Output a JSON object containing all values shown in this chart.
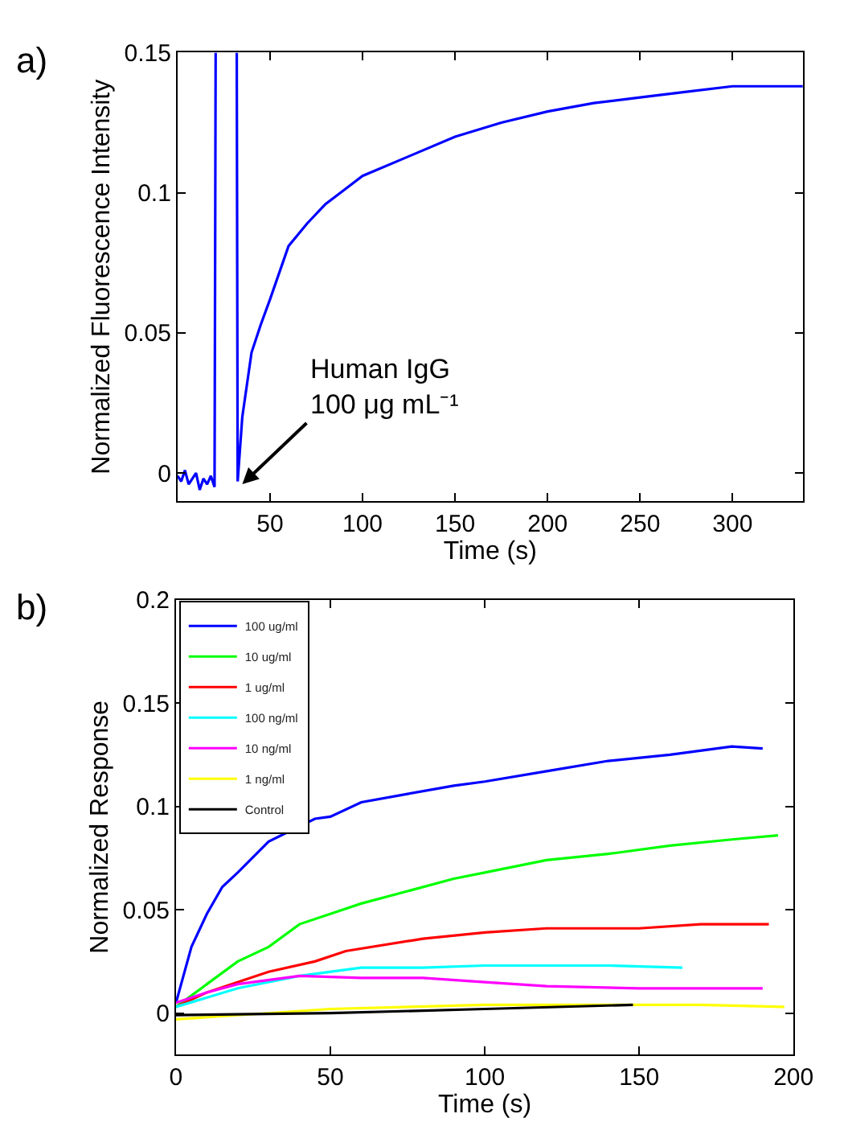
{
  "chart_data": [
    {
      "type": "line",
      "annotations": [
        "a)",
        {
          "text": "Human IgG\n100 μg mL⁻¹",
          "x": 35,
          "y": -0.004
        }
      ],
      "xlabel": "Time (s)",
      "ylabel": "Normalized Fluorescence Intensity",
      "xlim": [
        0,
        338
      ],
      "ylim": [
        -0.01,
        0.15
      ],
      "xticks": [
        50,
        100,
        150,
        200,
        250,
        300
      ],
      "yticks": [
        0,
        0.05,
        0.1,
        0.15
      ],
      "series": [
        {
          "color": "#0000ff",
          "x": [
            0,
            2,
            4,
            6,
            8,
            10,
            12,
            14,
            16,
            18,
            20,
            20.6,
            26,
            32,
            32.5,
            35,
            40,
            45,
            50,
            60,
            70,
            80,
            90,
            100,
            125,
            150,
            175,
            200,
            225,
            250,
            275,
            300,
            320,
            338
          ],
          "values": [
            -0.001,
            -0.003,
            0.001,
            -0.004,
            -0.002,
            0.0,
            -0.006,
            -0.002,
            -0.004,
            -0.001,
            -0.005,
            0.15,
            null,
            0.15,
            -0.003,
            0.02,
            0.043,
            0.053,
            0.062,
            0.081,
            0.089,
            0.096,
            0.101,
            0.106,
            0.113,
            0.12,
            0.125,
            0.129,
            0.132,
            0.134,
            0.136,
            0.138,
            0.138,
            0.138
          ]
        }
      ]
    },
    {
      "type": "line",
      "annotations": [
        "b)"
      ],
      "xlabel": "Time (s)",
      "ylabel": "Normalized Response",
      "xlim": [
        0,
        200
      ],
      "ylim": [
        -0.02,
        0.2
      ],
      "xticks": [
        0,
        50,
        100,
        150,
        200
      ],
      "yticks": [
        0,
        0.05,
        0.1,
        0.15,
        0.2
      ],
      "legend": "top left",
      "series": [
        {
          "name": "100 ug/ml",
          "color": "#0000ff",
          "x": [
            0,
            5,
            10,
            15,
            20,
            30,
            45,
            50,
            60,
            75,
            90,
            100,
            120,
            140,
            160,
            180,
            190
          ],
          "values": [
            0.005,
            0.032,
            0.048,
            0.061,
            0.068,
            0.083,
            0.094,
            0.095,
            0.102,
            0.106,
            0.11,
            0.112,
            0.117,
            0.122,
            0.125,
            0.129,
            0.128
          ]
        },
        {
          "name": "10 ug/ml",
          "color": "#00ff00",
          "x": [
            0,
            10,
            20,
            30,
            40,
            50,
            60,
            75,
            90,
            100,
            120,
            140,
            160,
            180,
            195
          ],
          "values": [
            0.003,
            0.014,
            0.025,
            0.032,
            0.043,
            0.048,
            0.053,
            0.059,
            0.065,
            0.068,
            0.074,
            0.077,
            0.081,
            0.084,
            0.086
          ]
        },
        {
          "name": "1 ug/ml",
          "color": "#ff0000",
          "x": [
            0,
            10,
            30,
            45,
            55,
            80,
            100,
            120,
            150,
            170,
            192
          ],
          "values": [
            0.003,
            0.01,
            0.02,
            0.025,
            0.03,
            0.036,
            0.039,
            0.041,
            0.041,
            0.043,
            0.043
          ]
        },
        {
          "name": "100 ng/ml",
          "color": "#00ffff",
          "x": [
            0,
            20,
            40,
            60,
            80,
            100,
            120,
            140,
            164
          ],
          "values": [
            0.003,
            0.012,
            0.018,
            0.022,
            0.022,
            0.023,
            0.023,
            0.023,
            0.022
          ]
        },
        {
          "name": "10 ng/ml",
          "color": "#ff00ff",
          "x": [
            0,
            10,
            20,
            40,
            60,
            80,
            100,
            120,
            150,
            170,
            190
          ],
          "values": [
            0.005,
            0.01,
            0.014,
            0.018,
            0.017,
            0.017,
            0.015,
            0.013,
            0.012,
            0.012,
            0.012
          ]
        },
        {
          "name": "1 ng/ml",
          "color": "#ffff00",
          "x": [
            0,
            50,
            100,
            150,
            170,
            197
          ],
          "values": [
            -0.003,
            0.002,
            0.004,
            0.004,
            0.004,
            0.003
          ]
        },
        {
          "name": "Control",
          "color": "#000000",
          "x": [
            0,
            50,
            100,
            148
          ],
          "values": [
            -0.001,
            0.0,
            0.002,
            0.004
          ]
        }
      ]
    }
  ]
}
